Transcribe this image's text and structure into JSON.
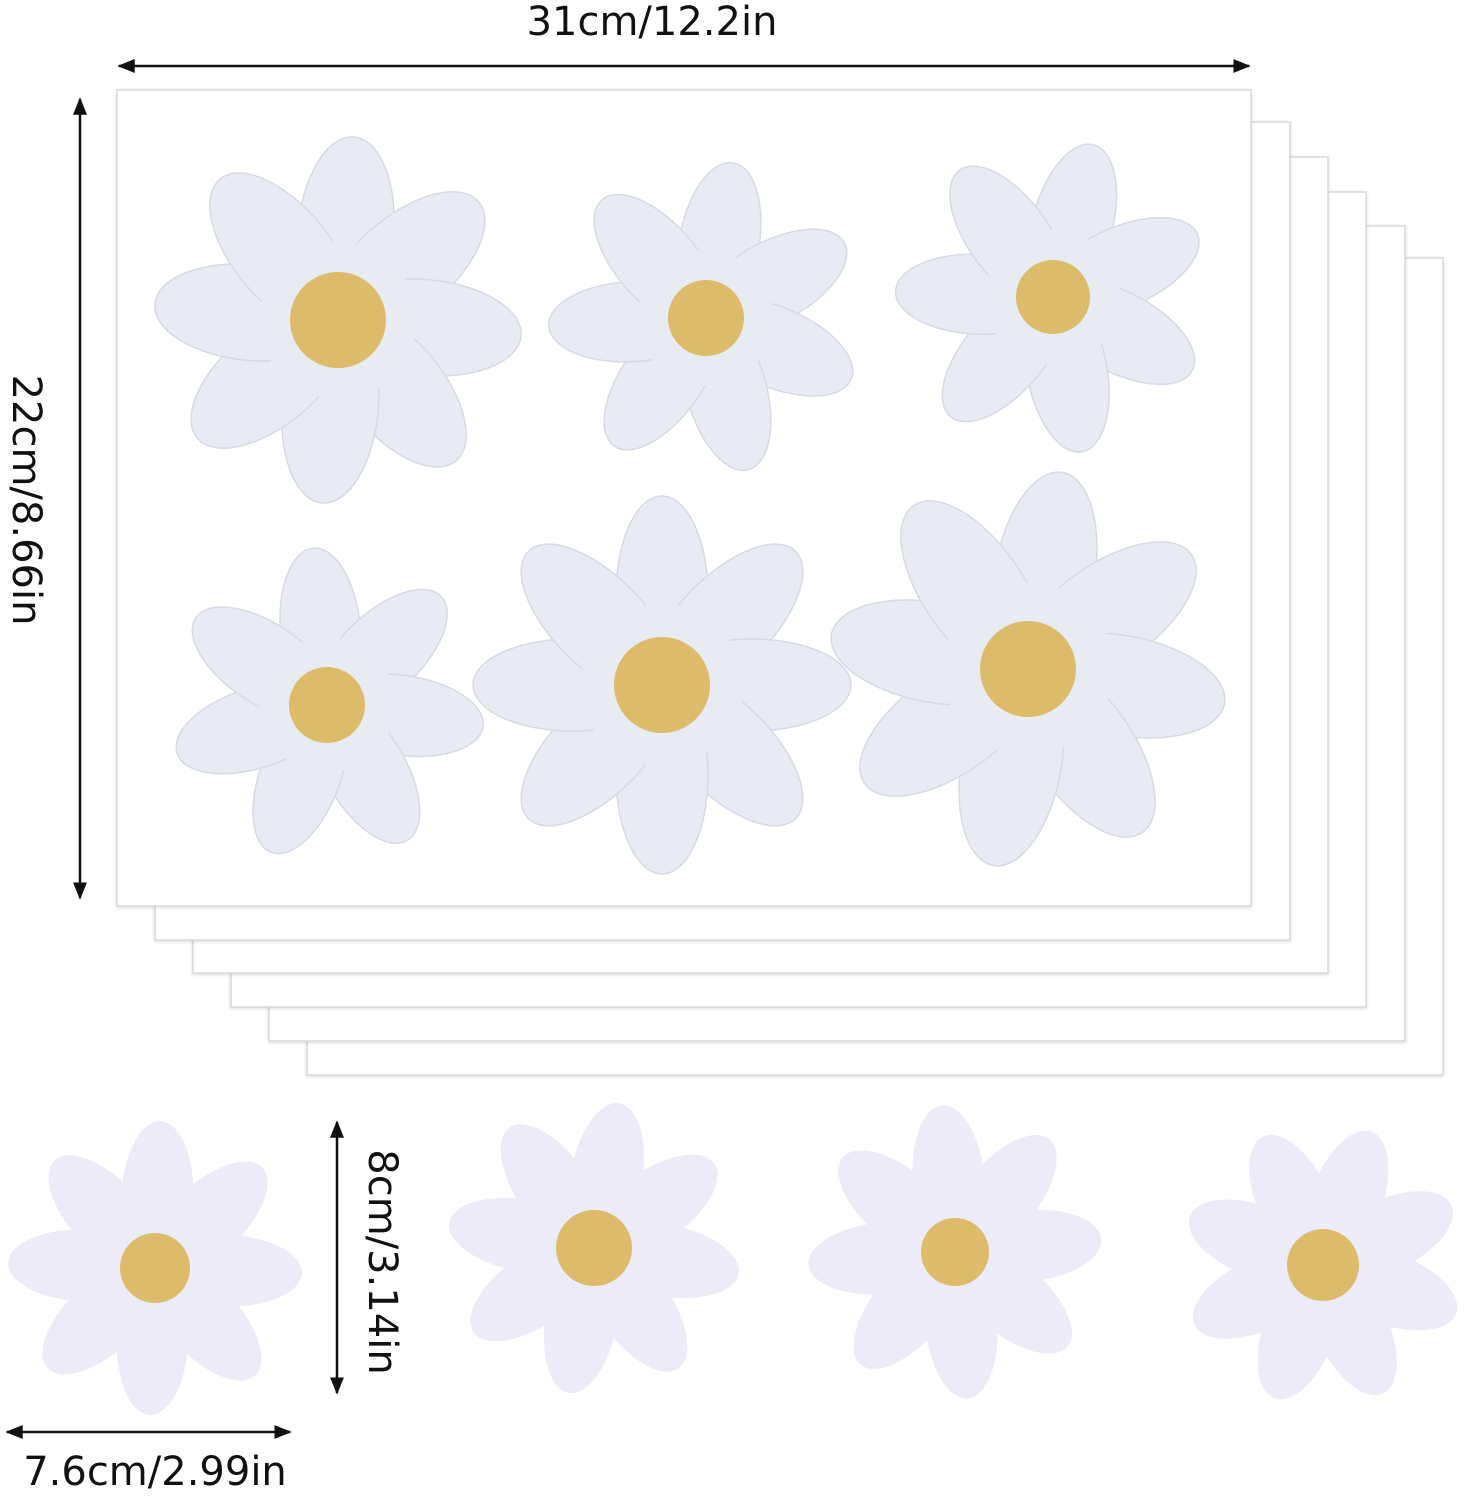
{
  "dimensions": {
    "sheet_width": "31cm/12.2in",
    "sheet_height": "22cm/8.66in",
    "flower_height": "8cm/3.14in",
    "flower_width": "7.6cm/2.99in"
  }
}
